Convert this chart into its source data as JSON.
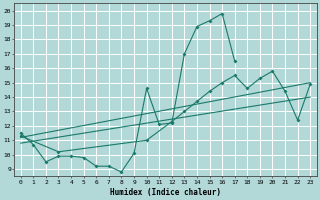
{
  "xlabel": "Humidex (Indice chaleur)",
  "xlim": [
    -0.5,
    23.5
  ],
  "ylim": [
    8.5,
    20.5
  ],
  "xticks": [
    0,
    1,
    2,
    3,
    4,
    5,
    6,
    7,
    8,
    9,
    10,
    11,
    12,
    13,
    14,
    15,
    16,
    17,
    18,
    19,
    20,
    21,
    22,
    23
  ],
  "yticks": [
    9,
    10,
    11,
    12,
    13,
    14,
    15,
    16,
    17,
    18,
    19,
    20
  ],
  "bg_color": "#b2d8d8",
  "grid_color": "#ffffff",
  "line_color": "#1a7a6a",
  "series": [
    {
      "x": [
        0,
        1,
        2,
        3,
        4,
        5,
        6,
        7,
        8,
        9,
        10,
        11,
        12,
        13,
        14,
        15,
        16,
        17
      ],
      "y": [
        11.5,
        10.7,
        9.5,
        9.9,
        9.9,
        9.8,
        9.2,
        9.2,
        8.8,
        10.1,
        14.6,
        12.1,
        12.2,
        17.0,
        18.9,
        19.3,
        19.8,
        16.5
      ]
    },
    {
      "x": [
        0,
        3,
        10,
        12,
        13,
        14,
        15,
        16,
        17,
        18,
        19,
        20,
        21,
        22,
        23
      ],
      "y": [
        11.3,
        10.2,
        11.0,
        12.3,
        13.0,
        13.7,
        14.4,
        15.0,
        15.5,
        14.6,
        15.3,
        15.8,
        14.4,
        12.4,
        14.9
      ]
    },
    {
      "x": [
        0,
        23
      ],
      "y": [
        11.2,
        15.0
      ]
    },
    {
      "x": [
        0,
        23
      ],
      "y": [
        10.8,
        14.0
      ]
    }
  ]
}
